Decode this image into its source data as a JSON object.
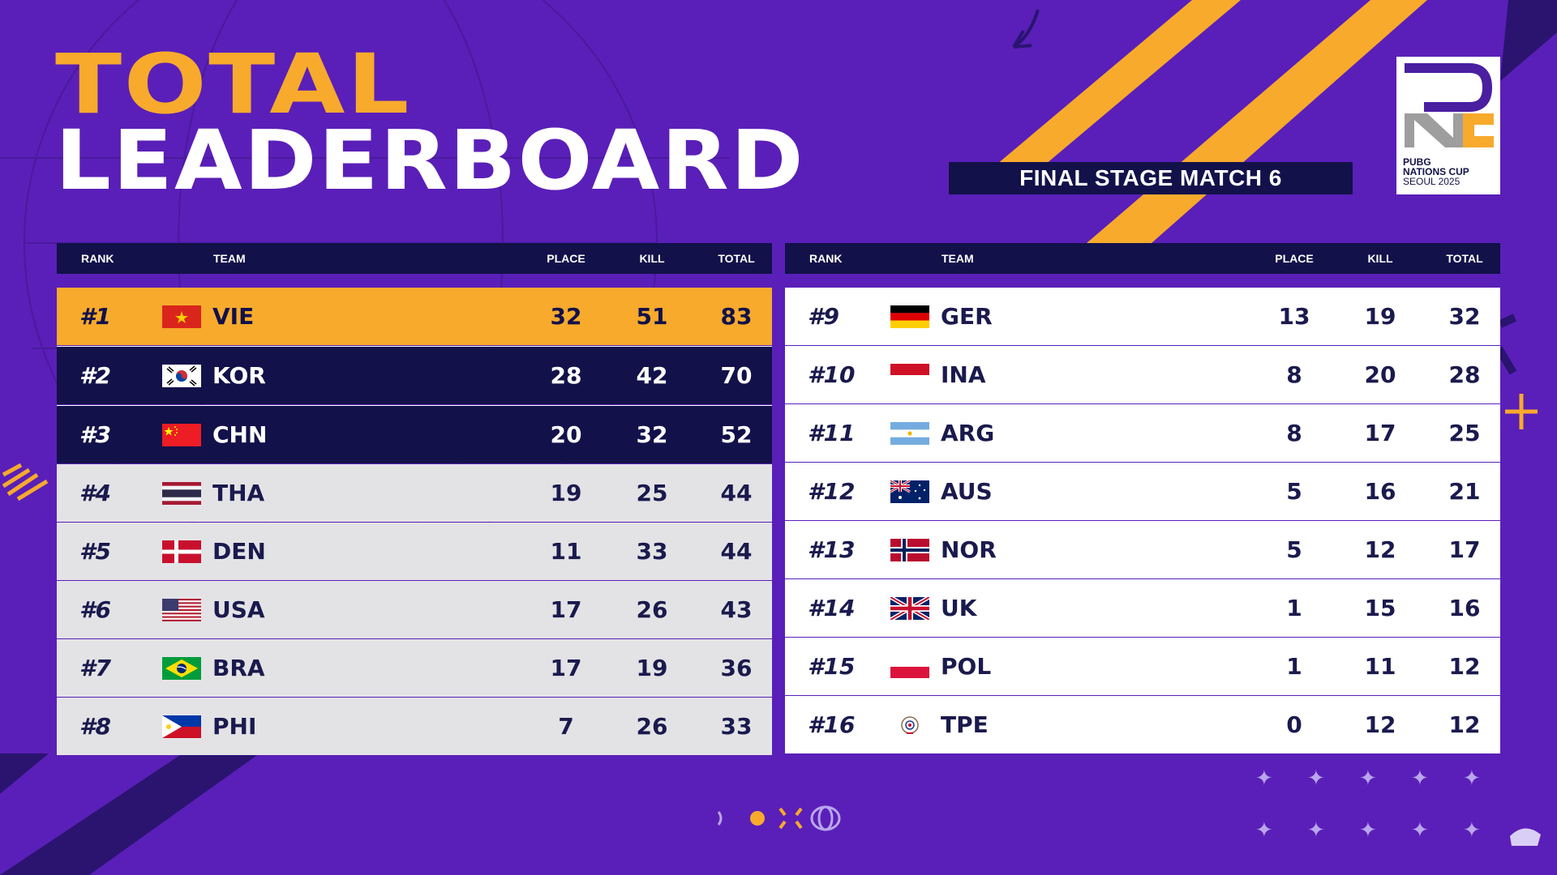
{
  "header": {
    "title_line1": "TOTAL",
    "title_line2": "LEADERBOARD",
    "stage": "FINAL STAGE MATCH 6"
  },
  "logo": {
    "lines": [
      "PUBG",
      "NATIONS CUP",
      "SEOUL 2025"
    ],
    "icon": "pnc-logo-icon"
  },
  "columns": {
    "rank": "RANK",
    "team": "TEAM",
    "place": "PLACE",
    "kill": "KILL",
    "total": "TOTAL"
  },
  "colors": {
    "background": "#5a1fb8",
    "accent_gold": "#f7aa2c",
    "navy": "#12114a",
    "row_gray": "#e3e3e6",
    "row_white": "#ffffff"
  },
  "left_table": [
    {
      "rank": "#1",
      "team": "VIE",
      "flag": "vietnam-flag",
      "place": "32",
      "kill": "51",
      "total": "83",
      "style": "gold"
    },
    {
      "rank": "#2",
      "team": "KOR",
      "flag": "korea-flag",
      "place": "28",
      "kill": "42",
      "total": "70",
      "style": "navy"
    },
    {
      "rank": "#3",
      "team": "CHN",
      "flag": "china-flag",
      "place": "20",
      "kill": "32",
      "total": "52",
      "style": "navy"
    },
    {
      "rank": "#4",
      "team": "THA",
      "flag": "thailand-flag",
      "place": "19",
      "kill": "25",
      "total": "44",
      "style": "gray"
    },
    {
      "rank": "#5",
      "team": "DEN",
      "flag": "denmark-flag",
      "place": "11",
      "kill": "33",
      "total": "44",
      "style": "gray"
    },
    {
      "rank": "#6",
      "team": "USA",
      "flag": "usa-flag",
      "place": "17",
      "kill": "26",
      "total": "43",
      "style": "gray"
    },
    {
      "rank": "#7",
      "team": "BRA",
      "flag": "brazil-flag",
      "place": "17",
      "kill": "19",
      "total": "36",
      "style": "gray"
    },
    {
      "rank": "#8",
      "team": "PHI",
      "flag": "philippines-flag",
      "place": "7",
      "kill": "26",
      "total": "33",
      "style": "gray"
    }
  ],
  "right_table": [
    {
      "rank": "#9",
      "team": "GER",
      "flag": "germany-flag",
      "place": "13",
      "kill": "19",
      "total": "32",
      "style": "white"
    },
    {
      "rank": "#10",
      "team": "INA",
      "flag": "indonesia-flag",
      "place": "8",
      "kill": "20",
      "total": "28",
      "style": "white"
    },
    {
      "rank": "#11",
      "team": "ARG",
      "flag": "argentina-flag",
      "place": "8",
      "kill": "17",
      "total": "25",
      "style": "white"
    },
    {
      "rank": "#12",
      "team": "AUS",
      "flag": "australia-flag",
      "place": "5",
      "kill": "16",
      "total": "21",
      "style": "white"
    },
    {
      "rank": "#13",
      "team": "NOR",
      "flag": "norway-flag",
      "place": "5",
      "kill": "12",
      "total": "17",
      "style": "white"
    },
    {
      "rank": "#14",
      "team": "UK",
      "flag": "uk-flag",
      "place": "1",
      "kill": "15",
      "total": "16",
      "style": "white"
    },
    {
      "rank": "#15",
      "team": "POL",
      "flag": "poland-flag",
      "place": "1",
      "kill": "11",
      "total": "12",
      "style": "white"
    },
    {
      "rank": "#16",
      "team": "TPE",
      "flag": "chinese-taipei-flag",
      "place": "0",
      "kill": "12",
      "total": "12",
      "style": "white"
    }
  ]
}
